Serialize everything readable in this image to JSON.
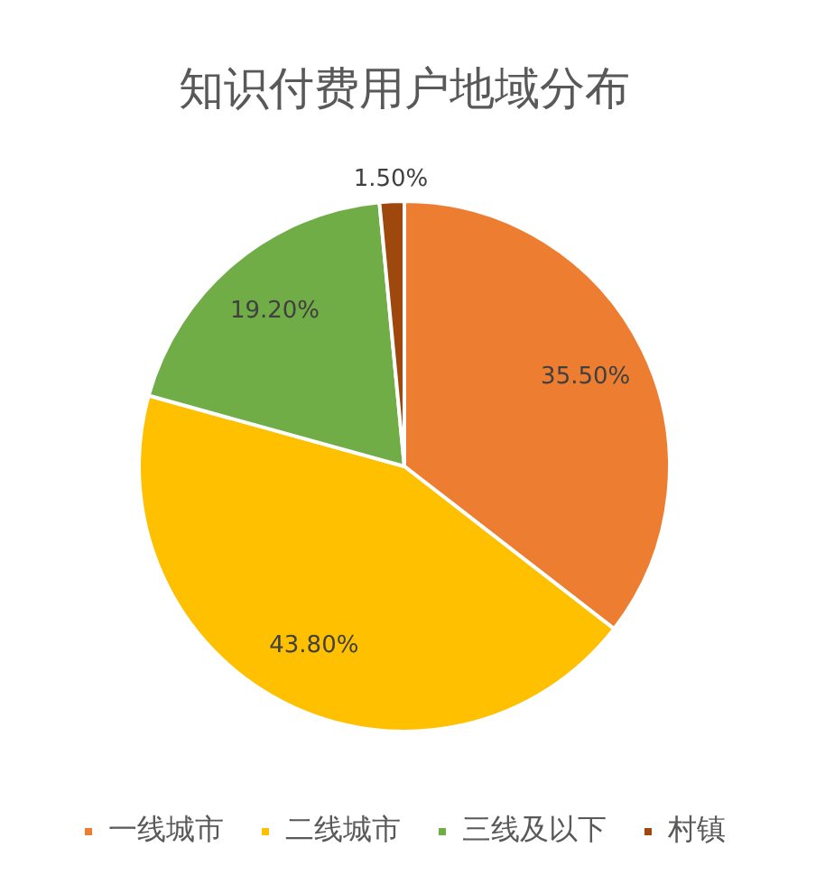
{
  "chart_data": {
    "type": "pie",
    "title": "知识付费用户地域分布",
    "categories": [
      "一线城市",
      "二线城市",
      "三线及以下",
      "村镇"
    ],
    "values": [
      35.5,
      43.8,
      19.2,
      1.5
    ],
    "colors": [
      "#ed7d31",
      "#ffc000",
      "#70ad47",
      "#9e480e"
    ],
    "value_labels": [
      "35.50%",
      "43.80%",
      "19.20%",
      "1.50%"
    ],
    "legend": "bottom"
  }
}
